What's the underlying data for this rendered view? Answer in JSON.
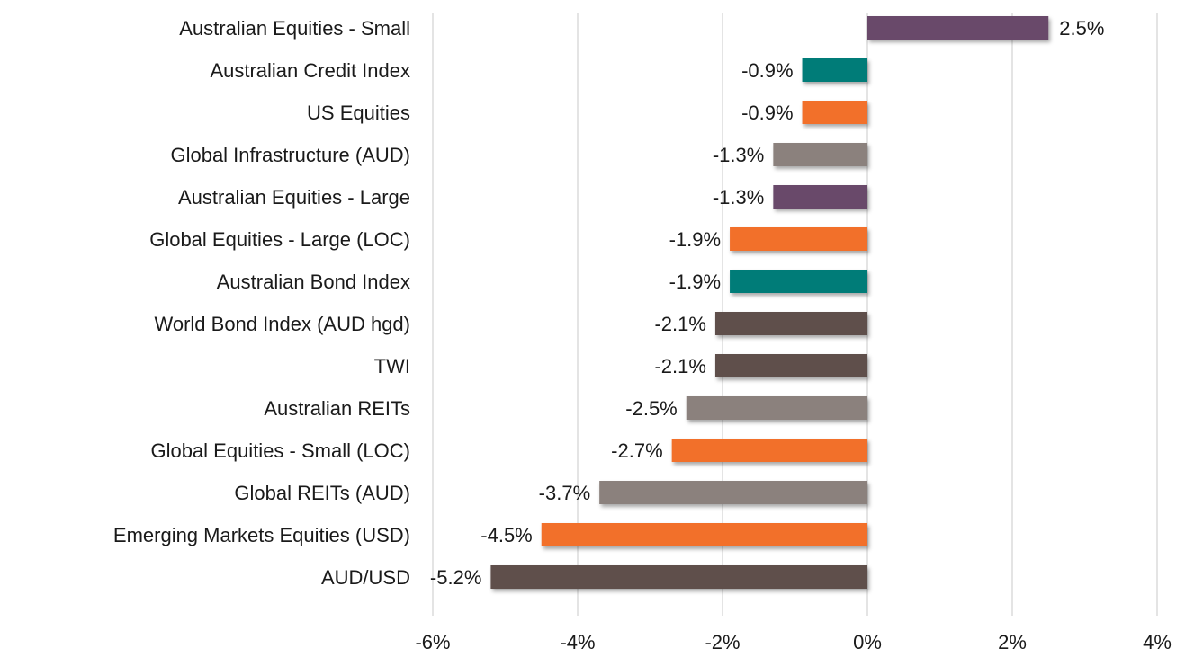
{
  "chart_data": {
    "type": "bar",
    "orientation": "horizontal",
    "title": "",
    "xlabel": "",
    "ylabel": "",
    "xlim": [
      -6,
      4
    ],
    "x_ticks": [
      -6,
      -4,
      -2,
      0,
      2,
      4
    ],
    "x_tick_labels": [
      "-6%",
      "-4%",
      "-2%",
      "0%",
      "2%",
      "4%"
    ],
    "grid": true,
    "legend": "none",
    "categories": [
      "Australian Equities - Small",
      "Australian Credit Index",
      "US Equities",
      "Global Infrastructure (AUD)",
      "Australian Equities - Large",
      "Global Equities - Large (LOC)",
      "Australian Bond Index",
      "World Bond Index (AUD hgd)",
      "TWI",
      "Australian REITs",
      "Global Equities - Small (LOC)",
      "Global REITs (AUD)",
      "Emerging Markets Equities (USD)",
      "AUD/USD"
    ],
    "values": [
      2.5,
      -0.9,
      -0.9,
      -1.3,
      -1.3,
      -1.9,
      -1.9,
      -2.1,
      -2.1,
      -2.5,
      -2.7,
      -3.7,
      -4.5,
      -5.2
    ],
    "data_labels": [
      "2.5%",
      "-0.9%",
      "-0.9%",
      "-1.3%",
      "-1.3%",
      "-1.9%",
      "-1.9%",
      "-2.1%",
      "-2.1%",
      "-2.5%",
      "-2.7%",
      "-3.7%",
      "-4.5%",
      "-5.2%"
    ],
    "colors": [
      "#694a6b",
      "#007b78",
      "#f26f2c",
      "#8b817d",
      "#694a6b",
      "#f26f2c",
      "#007b78",
      "#5e4f4b",
      "#5e4f4b",
      "#8b817d",
      "#f26f2c",
      "#8b817d",
      "#f26f2c",
      "#5e4f4b"
    ]
  }
}
